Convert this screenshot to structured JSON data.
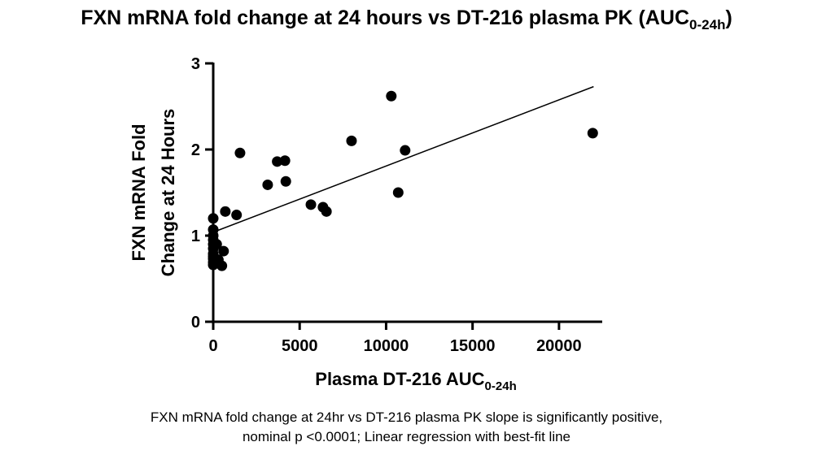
{
  "title": {
    "main": "FXN mRNA fold change at 24 hours vs DT-216 plasma PK (AUC",
    "sub": "0-24h",
    "tail": ")"
  },
  "footnote": {
    "line1": "FXN mRNA fold change at 24hr vs DT-216 plasma PK slope is significantly positive,",
    "line2": "nominal p <0.0001; Linear regression with best-fit line"
  },
  "chart_data": {
    "type": "scatter",
    "xlabel": {
      "main": "Plasma DT-216 AUC",
      "sub": "0-24h"
    },
    "ylabel": [
      "FXN mRNA Fold",
      "Change at 24 Hours"
    ],
    "xlim": [
      0,
      22500
    ],
    "ylim": [
      0,
      3
    ],
    "xticks": [
      0,
      5000,
      10000,
      15000,
      20000
    ],
    "yticks": [
      0,
      1,
      2,
      3
    ],
    "grid": false,
    "marker_color": "#000000",
    "points": [
      [
        0,
        1.2
      ],
      [
        0,
        1.07
      ],
      [
        0,
        1.0
      ],
      [
        0,
        0.95
      ],
      [
        0,
        0.9
      ],
      [
        0,
        0.85
      ],
      [
        0,
        0.79
      ],
      [
        0,
        0.76
      ],
      [
        0,
        0.73
      ],
      [
        0,
        0.69
      ],
      [
        0,
        0.66
      ],
      [
        200,
        0.9
      ],
      [
        300,
        0.72
      ],
      [
        500,
        0.65
      ],
      [
        600,
        0.82
      ],
      [
        700,
        1.28
      ],
      [
        1350,
        1.24
      ],
      [
        1550,
        1.96
      ],
      [
        3150,
        1.59
      ],
      [
        3700,
        1.86
      ],
      [
        4150,
        1.87
      ],
      [
        4200,
        1.63
      ],
      [
        5650,
        1.36
      ],
      [
        6350,
        1.33
      ],
      [
        6550,
        1.28
      ],
      [
        8000,
        2.1
      ],
      [
        10300,
        2.62
      ],
      [
        10700,
        1.5
      ],
      [
        11100,
        1.99
      ],
      [
        21950,
        2.19
      ]
    ],
    "fit_line": {
      "x": [
        0,
        22000
      ],
      "y": [
        1.04,
        2.73
      ]
    }
  }
}
